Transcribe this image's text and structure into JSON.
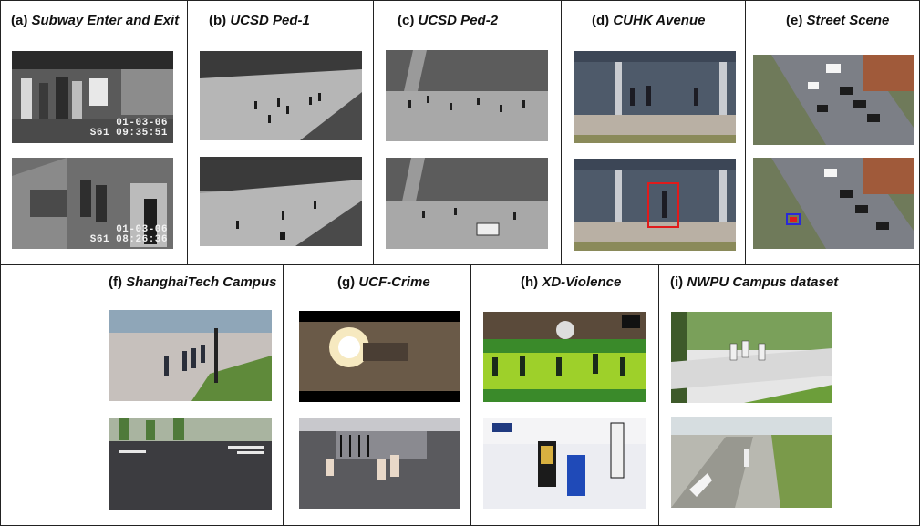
{
  "panels": [
    {
      "id": "a",
      "letter": "(a)",
      "name": "Subway Enter and Exit",
      "stamps": [
        {
          "date": "01-03-06",
          "time": "S61  09:35:51"
        },
        {
          "date": "01-03-06",
          "time": "S61  08:26:36"
        }
      ]
    },
    {
      "id": "b",
      "letter": "(b)",
      "name": "UCSD Ped-1"
    },
    {
      "id": "c",
      "letter": "(c)",
      "name": "UCSD Ped-2"
    },
    {
      "id": "d",
      "letter": "(d)",
      "name": "CUHK Avenue"
    },
    {
      "id": "e",
      "letter": "(e)",
      "name": "Street Scene"
    },
    {
      "id": "f",
      "letter": "(f)",
      "name": "ShanghaiTech Campus"
    },
    {
      "id": "g",
      "letter": "(g)",
      "name": "UCF-Crime"
    },
    {
      "id": "h",
      "letter": "(h)",
      "name": "XD-Violence"
    },
    {
      "id": "i",
      "letter": "(i)",
      "name": "NWPU Campus dataset"
    }
  ],
  "colors": {
    "border": "#222222",
    "anomaly_box_red": "#e11b1b",
    "anomaly_box_blue": "#2a2ad8"
  }
}
